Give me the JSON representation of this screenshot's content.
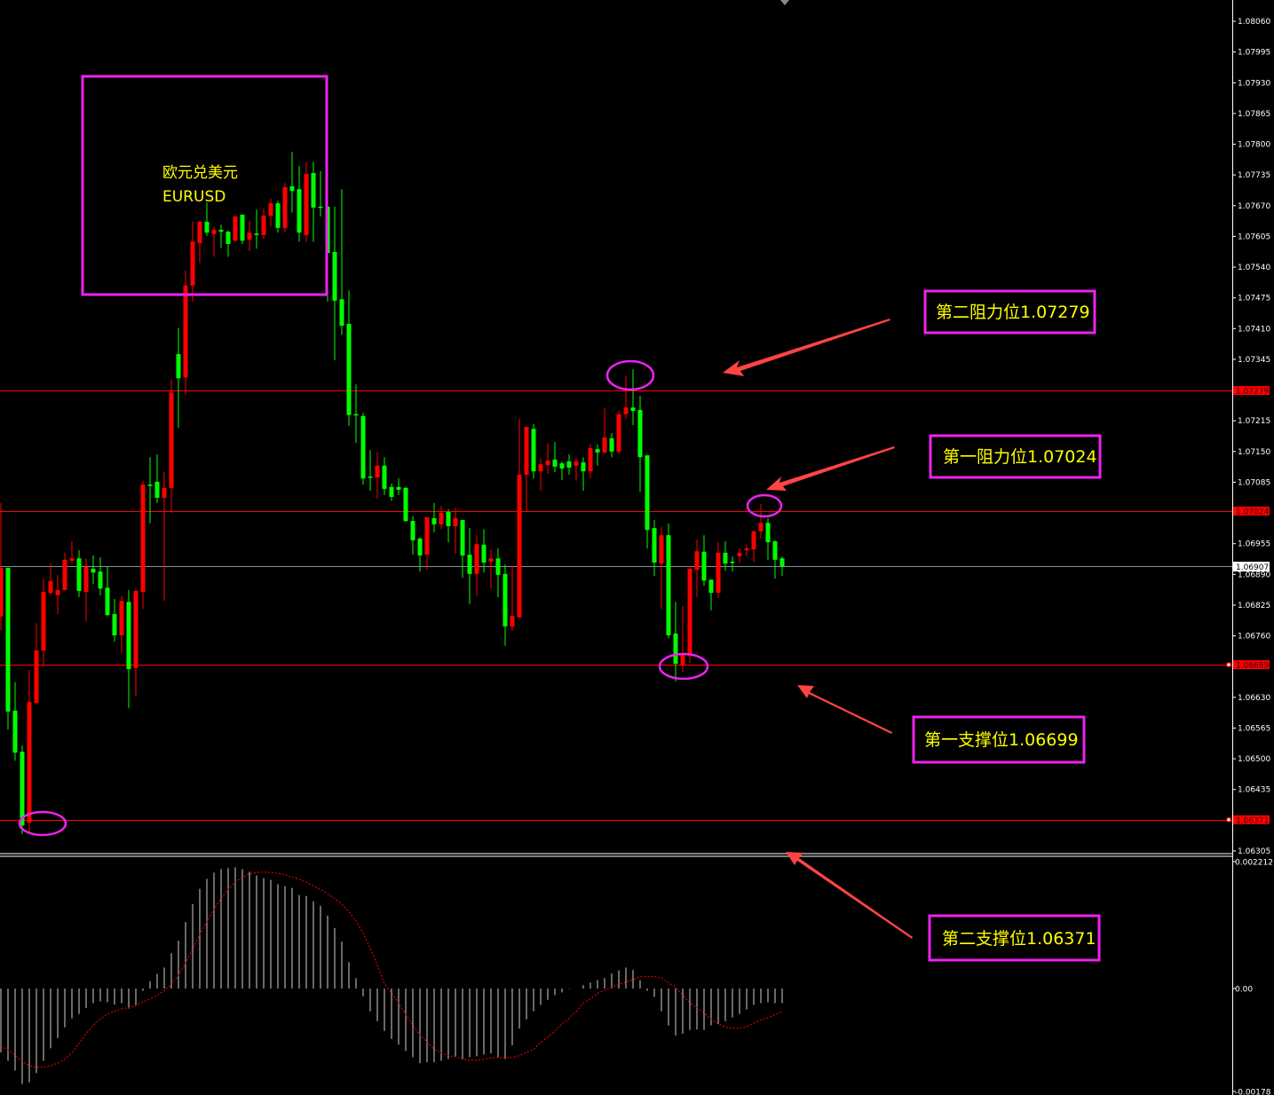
{
  "chart_data": {
    "type": "candlestick",
    "symbol_cn": "欧元兑美元",
    "symbol": "EURUSD",
    "up_color": "#ff0000",
    "down_color": "#00ff00",
    "price_axis": {
      "range": [
        1.06305,
        1.0806
      ],
      "ticks": [
        "1.08060",
        "1.07995",
        "1.07930",
        "1.07865",
        "1.07800",
        "1.07735",
        "1.07670",
        "1.07605",
        "1.07540",
        "1.07475",
        "1.07410",
        "1.07345",
        "1.07215",
        "1.07150",
        "1.07085",
        "1.06955",
        "1.06890",
        "1.06825",
        "1.06760",
        "1.06630",
        "1.06565",
        "1.06500",
        "1.06435",
        "1.06305"
      ]
    },
    "current_price": "1.06907",
    "levels": [
      {
        "price": "1.07279",
        "label": "第二阻力位1.07279",
        "color": "#ff0000"
      },
      {
        "price": "1.07024",
        "label": "第一阻力位1.07024",
        "color": "#ff0000"
      },
      {
        "price": "1.06699",
        "label": "第一支撑位1.06699",
        "color": "#ff0000"
      },
      {
        "price": "1.06371",
        "label": "第二支撑位1.06371",
        "color": "#ff0000"
      }
    ],
    "ohlc": [
      [
        1.06801,
        1.07041,
        1.06772,
        1.06904
      ],
      [
        1.06904,
        1.06904,
        1.06562,
        1.066
      ],
      [
        1.06602,
        1.06662,
        1.06496,
        1.06513
      ],
      [
        1.06515,
        1.06528,
        1.06341,
        1.06359
      ],
      [
        1.06365,
        1.06688,
        1.06341,
        1.0662
      ],
      [
        1.06618,
        1.06787,
        1.06618,
        1.06729
      ],
      [
        1.06729,
        1.06881,
        1.06694,
        1.06853
      ],
      [
        1.06851,
        1.06913,
        1.06846,
        1.06876
      ],
      [
        1.06846,
        1.06889,
        1.06806,
        1.06857
      ],
      [
        1.06857,
        1.06936,
        1.06857,
        1.06921
      ],
      [
        1.06919,
        1.0696,
        1.06913,
        1.06924
      ],
      [
        1.06924,
        1.06941,
        1.06842,
        1.06855
      ],
      [
        1.06853,
        1.06924,
        1.06791,
        1.06906
      ],
      [
        1.06902,
        1.0693,
        1.0687,
        1.06894
      ],
      [
        1.06896,
        1.06926,
        1.06846,
        1.0686
      ],
      [
        1.06862,
        1.06906,
        1.06802,
        1.06804
      ],
      [
        1.06806,
        1.06838,
        1.06748,
        1.06761
      ],
      [
        1.06761,
        1.06844,
        1.06722,
        1.06834
      ],
      [
        1.06832,
        1.06857,
        1.06607,
        1.0669
      ],
      [
        1.06692,
        1.06859,
        1.06633,
        1.06855
      ],
      [
        1.06853,
        1.07088,
        1.06817,
        1.0708
      ],
      [
        1.0708,
        1.07138,
        1.06998,
        1.07078
      ],
      [
        1.07086,
        1.07144,
        1.07041,
        1.07052
      ],
      [
        1.07052,
        1.07106,
        1.06834,
        1.07073
      ],
      [
        1.07073,
        1.07302,
        1.0702,
        1.07275
      ],
      [
        1.07356,
        1.07411,
        1.072,
        1.07305
      ],
      [
        1.07307,
        1.07533,
        1.0727,
        1.07501
      ],
      [
        1.07501,
        1.07636,
        1.07467,
        1.07594
      ],
      [
        1.07591,
        1.07638,
        1.07549,
        1.07636
      ],
      [
        1.07636,
        1.07677,
        1.07606,
        1.07613
      ],
      [
        1.0761,
        1.07625,
        1.07562,
        1.07619
      ],
      [
        1.07619,
        1.0763,
        1.07581,
        1.07615
      ],
      [
        1.07615,
        1.07617,
        1.07562,
        1.07589
      ],
      [
        1.07596,
        1.07649,
        1.07593,
        1.07647
      ],
      [
        1.07651,
        1.07651,
        1.07589,
        1.07596
      ],
      [
        1.07598,
        1.07638,
        1.07574,
        1.07613
      ],
      [
        1.07611,
        1.07662,
        1.07579,
        1.07608
      ],
      [
        1.07608,
        1.07664,
        1.076,
        1.07649
      ],
      [
        1.07649,
        1.07685,
        1.07626,
        1.07675
      ],
      [
        1.07675,
        1.07681,
        1.07613,
        1.07623
      ],
      [
        1.07623,
        1.07718,
        1.07613,
        1.07709
      ],
      [
        1.07711,
        1.07784,
        1.07655,
        1.07701
      ],
      [
        1.07705,
        1.07754,
        1.07594,
        1.07613
      ],
      [
        1.07608,
        1.07763,
        1.07594,
        1.07737
      ],
      [
        1.07739,
        1.07763,
        1.07594,
        1.07666
      ],
      [
        1.07668,
        1.07743,
        1.07647,
        1.07666
      ],
      [
        1.07668,
        1.07668,
        1.07467,
        1.0757
      ],
      [
        1.07572,
        1.07668,
        1.07343,
        1.07469
      ],
      [
        1.07472,
        1.07705,
        1.07397,
        1.07416
      ],
      [
        1.0742,
        1.07491,
        1.07204,
        1.07227
      ],
      [
        1.07229,
        1.07292,
        1.07168,
        1.07227
      ],
      [
        1.07225,
        1.07232,
        1.0708,
        1.07093
      ],
      [
        1.07097,
        1.07153,
        1.07067,
        1.07095
      ],
      [
        1.07095,
        1.07148,
        1.0705,
        1.0712
      ],
      [
        1.0712,
        1.07138,
        1.07058,
        1.07071
      ],
      [
        1.07075,
        1.07082,
        1.07045,
        1.07054
      ],
      [
        1.07075,
        1.07093,
        1.07058,
        1.07069
      ],
      [
        1.07073,
        1.07075,
        1.07001,
        1.07003
      ],
      [
        1.07003,
        1.07013,
        1.06932,
        1.06962
      ],
      [
        1.06966,
        1.06968,
        1.06896,
        1.0693
      ],
      [
        1.06932,
        1.07011,
        1.069,
        1.07011
      ],
      [
        1.07009,
        1.07041,
        1.06979,
        1.06996
      ],
      [
        1.06996,
        1.07035,
        1.06986,
        1.0702
      ],
      [
        1.07022,
        1.07028,
        1.06958,
        1.06992
      ],
      [
        1.06992,
        1.07031,
        1.06934,
        1.07009
      ],
      [
        1.07005,
        1.07005,
        1.06883,
        1.0693
      ],
      [
        1.06932,
        1.06988,
        1.06827,
        1.06891
      ],
      [
        1.06891,
        1.06973,
        1.06845,
        1.06954
      ],
      [
        1.06953,
        1.06986,
        1.06894,
        1.06915
      ],
      [
        1.06917,
        1.06943,
        1.0686,
        1.06924
      ],
      [
        1.06924,
        1.06945,
        1.06842,
        1.06889
      ],
      [
        1.06891,
        1.06911,
        1.06739,
        1.0678
      ],
      [
        1.0678,
        1.06908,
        1.06771,
        1.06802
      ],
      [
        1.06799,
        1.07219,
        1.06799,
        1.07101
      ],
      [
        1.07101,
        1.07202,
        1.07024,
        1.07202
      ],
      [
        1.07198,
        1.07208,
        1.07093,
        1.07108
      ],
      [
        1.07108,
        1.07135,
        1.07067,
        1.07123
      ],
      [
        1.07121,
        1.07167,
        1.07103,
        1.07131
      ],
      [
        1.07133,
        1.0717,
        1.07106,
        1.07118
      ],
      [
        1.07125,
        1.07129,
        1.0709,
        1.07114
      ],
      [
        1.07129,
        1.07144,
        1.07101,
        1.07116
      ],
      [
        1.0712,
        1.07135,
        1.07088,
        1.07129
      ],
      [
        1.07127,
        1.07138,
        1.07067,
        1.07108
      ],
      [
        1.07108,
        1.07165,
        1.07093,
        1.07157
      ],
      [
        1.07155,
        1.07165,
        1.0712,
        1.07148
      ],
      [
        1.07148,
        1.07242,
        1.07146,
        1.0718
      ],
      [
        1.07178,
        1.07189,
        1.07138,
        1.0715
      ],
      [
        1.0715,
        1.07236,
        1.07144,
        1.07229
      ],
      [
        1.07229,
        1.07309,
        1.07219,
        1.07243
      ],
      [
        1.07243,
        1.07324,
        1.07206,
        1.07236
      ],
      [
        1.07238,
        1.07268,
        1.07065,
        1.07138
      ],
      [
        1.07142,
        1.07142,
        1.06945,
        1.06984
      ],
      [
        1.06988,
        1.07005,
        1.06887,
        1.06915
      ],
      [
        1.06913,
        1.0699,
        1.06817,
        1.06973
      ],
      [
        1.06973,
        1.06998,
        1.06755,
        1.06761
      ],
      [
        1.06765,
        1.06832,
        1.06664,
        1.06701
      ],
      [
        1.06699,
        1.06823,
        1.06684,
        1.0672
      ],
      [
        1.06718,
        1.06908,
        1.06703,
        1.06902
      ],
      [
        1.069,
        1.06964,
        1.06842,
        1.06939
      ],
      [
        1.06938,
        1.06973,
        1.06866,
        1.06877
      ],
      [
        1.06879,
        1.06879,
        1.06814,
        1.06851
      ],
      [
        1.06851,
        1.06958,
        1.0684,
        1.06936
      ],
      [
        1.06936,
        1.0696,
        1.06898,
        1.06913
      ],
      [
        1.06917,
        1.06928,
        1.06896,
        1.06915
      ],
      [
        1.06928,
        1.06945,
        1.06915,
        1.06936
      ],
      [
        1.06941,
        1.06953,
        1.06928,
        1.06945
      ],
      [
        1.06943,
        1.06984,
        1.06917,
        1.06981
      ],
      [
        1.06981,
        1.07039,
        1.06966,
        1.06999
      ],
      [
        1.06999,
        1.07009,
        1.06921,
        1.06958
      ],
      [
        1.0696,
        1.06962,
        1.06881,
        1.06921
      ],
      [
        1.06924,
        1.06928,
        1.06887,
        1.06907
      ]
    ],
    "macd": {
      "axis_ticks": [
        "0.002212",
        "0.00",
        "-0.00178"
      ],
      "range": [
        -0.00178,
        0.002212
      ],
      "histogram_color": "#ffffff",
      "signal_color": "#ff0000",
      "histogram": [
        -0.001106,
        -0.001251,
        -0.001417,
        -0.001654,
        -0.001623,
        -0.001463,
        -0.001251,
        -0.001034,
        -0.000858,
        -0.000672,
        -0.000517,
        -0.000439,
        -0.000336,
        -0.000253,
        -0.000222,
        -0.000238,
        -0.000279,
        -0.000253,
        -0.000346,
        -0.00029,
        -4.1e-05,
        0.000129,
        0.000253,
        0.000362,
        0.00061,
        0.000827,
        0.001153,
        0.001463,
        0.001727,
        0.001897,
        0.002006,
        0.002068,
        0.002084,
        0.002099,
        0.002068,
        0.002021,
        0.001959,
        0.001913,
        0.001882,
        0.001804,
        0.001773,
        0.001742,
        0.001618,
        0.001603,
        0.00151,
        0.001432,
        0.001261,
        0.001044,
        0.000812,
        0.000455,
        0.000176,
        -0.000134,
        -0.000393,
        -0.000564,
        -0.000734,
        -0.000874,
        -0.000972,
        -0.001081,
        -0.001189,
        -0.001293,
        -0.001277,
        -0.001277,
        -0.001251,
        -0.00122,
        -0.001179,
        -0.00122,
        -0.001189,
        -0.001174,
        -0.001143,
        -0.001122,
        -0.001189,
        -0.00122,
        -0.000982,
        -0.000693,
        -0.000533,
        -0.000393,
        -0.000284,
        -0.000196,
        -0.000114,
        -6.7e-05,
        -5e-06,
        0.0,
        5.7e-05,
        0.000103,
        0.000145,
        0.000181,
        0.000259,
        0.000315,
        0.000362,
        0.000321,
        0.000145,
        -4.1e-05,
        -0.000145,
        -0.000393,
        -0.000641,
        -0.000812,
        -0.000781,
        -0.000719,
        -0.000708,
        -0.000719,
        -0.000636,
        -0.00061,
        -0.000564,
        -0.000501,
        -0.000439,
        -0.000362,
        -0.000284,
        -0.000253,
        -0.000238,
        -0.000253,
        -0.000253
      ],
      "signal": [
        -0.000993,
        -0.00107,
        -0.001158,
        -0.001261,
        -0.001334,
        -0.00136,
        -0.00136,
        -0.001334,
        -0.001293,
        -0.001225,
        -0.001117,
        -0.000951,
        -0.000776,
        -0.000641,
        -0.000522,
        -0.000439,
        -0.000393,
        -0.000352,
        -0.000331,
        -0.00029,
        -0.000233,
        -0.000181,
        -0.000114,
        -3.6e-05,
        7.2e-05,
        0.000227,
        0.000439,
        0.000688,
        0.000936,
        0.001163,
        0.00137,
        0.001556,
        0.001716,
        0.001841,
        0.001928,
        0.001985,
        0.002011,
        0.002016,
        0.002011,
        0.001996,
        0.00197,
        0.001928,
        0.001892,
        0.001841,
        0.001778,
        0.001716,
        0.001639,
        0.001556,
        0.001458,
        0.001334,
        0.001168,
        0.000962,
        0.000703,
        0.000403,
        8.3e-05,
        -7.2e-05,
        -0.000253,
        -0.00045,
        -0.000631,
        -0.000807,
        -0.000925,
        -0.001055,
        -0.001112,
        -0.001163,
        -0.001179,
        -0.001225,
        -0.001241,
        -0.001241,
        -0.001225,
        -0.001199,
        -0.001194,
        -0.001194,
        -0.001194,
        -0.001163,
        -0.001106,
        -0.001055,
        -0.000931,
        -0.000843,
        -0.000734,
        -0.00061,
        -0.000517,
        -0.000398,
        -0.000253,
        -0.000181,
        -8.8e-05,
        -3.1e-05,
        2.1e-05,
        7.2e-05,
        0.000109,
        0.000155,
        0.000202,
        0.000212,
        0.000207,
        0.000181,
        0.000103,
        2.6e-05,
        -0.000114,
        -0.000243,
        -0.000331,
        -0.000424,
        -0.000533,
        -0.00061,
        -0.000667,
        -0.000688,
        -0.000688,
        -0.000657,
        -0.000595,
        -0.000543,
        -0.000507,
        -0.00045,
        -0.000403
      ]
    }
  },
  "annotations": {
    "title_cn": "欧元兑美元",
    "title_en": "EURUSD",
    "resistance_2": "第二阻力位1.07279",
    "resistance_1": "第一阻力位1.07024",
    "support_1": "第一支撑位1.06699",
    "support_2": "第二支撑位1.06371",
    "highlight_color": "#ee22ee",
    "text_color": "#ffff00",
    "arrow_color": "#ff4444"
  }
}
